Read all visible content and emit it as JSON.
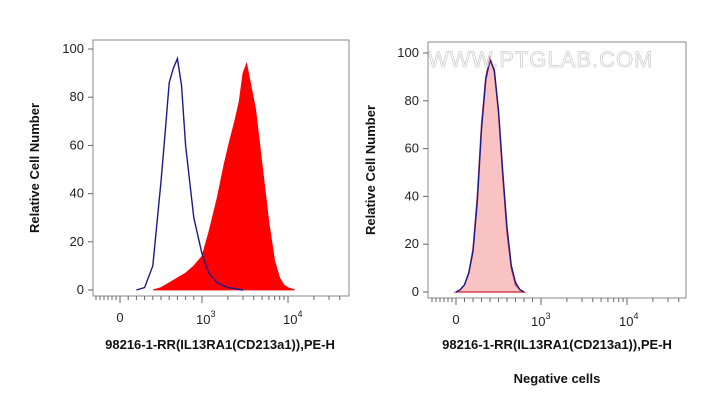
{
  "chart_data": [
    {
      "type": "histogram",
      "xlabel": "98216-1-RR(IL13RA1(CD213a1)),PE-H",
      "ylabel": "Relative Cell Number",
      "x_scale": "biexponential",
      "x_ticks": [
        "0",
        "10^3",
        "10^4"
      ],
      "y_ticks": [
        "0",
        "20",
        "40",
        "60",
        "80",
        "100"
      ],
      "ylim": [
        0,
        100
      ],
      "grid": false,
      "series": [
        {
          "style": "filled",
          "color": "#ff0000",
          "points": [
            [
              400,
              0
            ],
            [
              500,
              1
            ],
            [
              600,
              3
            ],
            [
              700,
              5
            ],
            [
              800,
              7
            ],
            [
              900,
              10
            ],
            [
              1000,
              14
            ],
            [
              1200,
              24
            ],
            [
              1500,
              38
            ],
            [
              1800,
              52
            ],
            [
              2100,
              62
            ],
            [
              2400,
              70
            ],
            [
              2700,
              78
            ],
            [
              3000,
              90
            ],
            [
              3300,
              94
            ],
            [
              3700,
              85
            ],
            [
              4200,
              75
            ],
            [
              5000,
              52
            ],
            [
              6000,
              28
            ],
            [
              7000,
              12
            ],
            [
              8000,
              5
            ],
            [
              9000,
              2
            ],
            [
              10000,
              1
            ],
            [
              12000,
              0
            ]
          ]
        },
        {
          "style": "line",
          "color": "#1a1a8c",
          "points": [
            [
              200,
              0
            ],
            [
              300,
              1
            ],
            [
              400,
              10
            ],
            [
              500,
              45
            ],
            [
              550,
              65
            ],
            [
              600,
              86
            ],
            [
              650,
              92
            ],
            [
              700,
              96
            ],
            [
              750,
              85
            ],
            [
              800,
              60
            ],
            [
              900,
              30
            ],
            [
              1000,
              15
            ],
            [
              1200,
              7
            ],
            [
              1500,
              3
            ],
            [
              2000,
              1
            ],
            [
              3000,
              0
            ]
          ]
        }
      ]
    },
    {
      "type": "histogram",
      "xlabel": "98216-1-RR(IL13RA1(CD213a1)),PE-H",
      "ylabel": "Relative Cell Number",
      "x_scale": "biexponential",
      "x_ticks": [
        "0",
        "10^3",
        "10^4"
      ],
      "y_ticks": [
        "0",
        "20",
        "40",
        "60",
        "80",
        "100"
      ],
      "ylim": [
        0,
        100
      ],
      "grid": false,
      "subtitle": "Negative cells",
      "watermark": "WWW.PTGLAB.COM",
      "series": [
        {
          "style": "filled",
          "color": "#f9c3c3",
          "edge_color": "#d6404a",
          "points": [
            [
              0,
              0
            ],
            [
              50,
              1
            ],
            [
              100,
              3
            ],
            [
              150,
              8
            ],
            [
              200,
              18
            ],
            [
              250,
              40
            ],
            [
              300,
              70
            ],
            [
              350,
              90
            ],
            [
              400,
              98
            ],
            [
              450,
              92
            ],
            [
              500,
              75
            ],
            [
              550,
              48
            ],
            [
              600,
              25
            ],
            [
              650,
              10
            ],
            [
              700,
              3
            ],
            [
              750,
              1
            ],
            [
              800,
              0
            ]
          ]
        },
        {
          "style": "line",
          "color": "#1a1a8c",
          "points": [
            [
              0,
              0
            ],
            [
              50,
              1
            ],
            [
              100,
              3
            ],
            [
              150,
              8
            ],
            [
              200,
              17
            ],
            [
              250,
              38
            ],
            [
              300,
              68
            ],
            [
              350,
              89
            ],
            [
              400,
              97
            ],
            [
              450,
              93
            ],
            [
              500,
              76
            ],
            [
              550,
              50
            ],
            [
              600,
              27
            ],
            [
              650,
              11
            ],
            [
              700,
              4
            ],
            [
              750,
              1
            ],
            [
              800,
              0
            ]
          ]
        }
      ]
    }
  ],
  "texts": {
    "left_xlabel": "98216-1-RR(IL13RA1(CD213a1)),PE-H",
    "right_xlabel": "98216-1-RR(IL13RA1(CD213a1)),PE-H",
    "left_ylabel": "Relative Cell Number",
    "right_ylabel": "Relative Cell Number",
    "caption": "Negative cells",
    "watermark": "WWW.PTGLAB.COM",
    "tick_zero": "0",
    "tick_ten": "10",
    "exp3": "3",
    "exp4": "4"
  }
}
